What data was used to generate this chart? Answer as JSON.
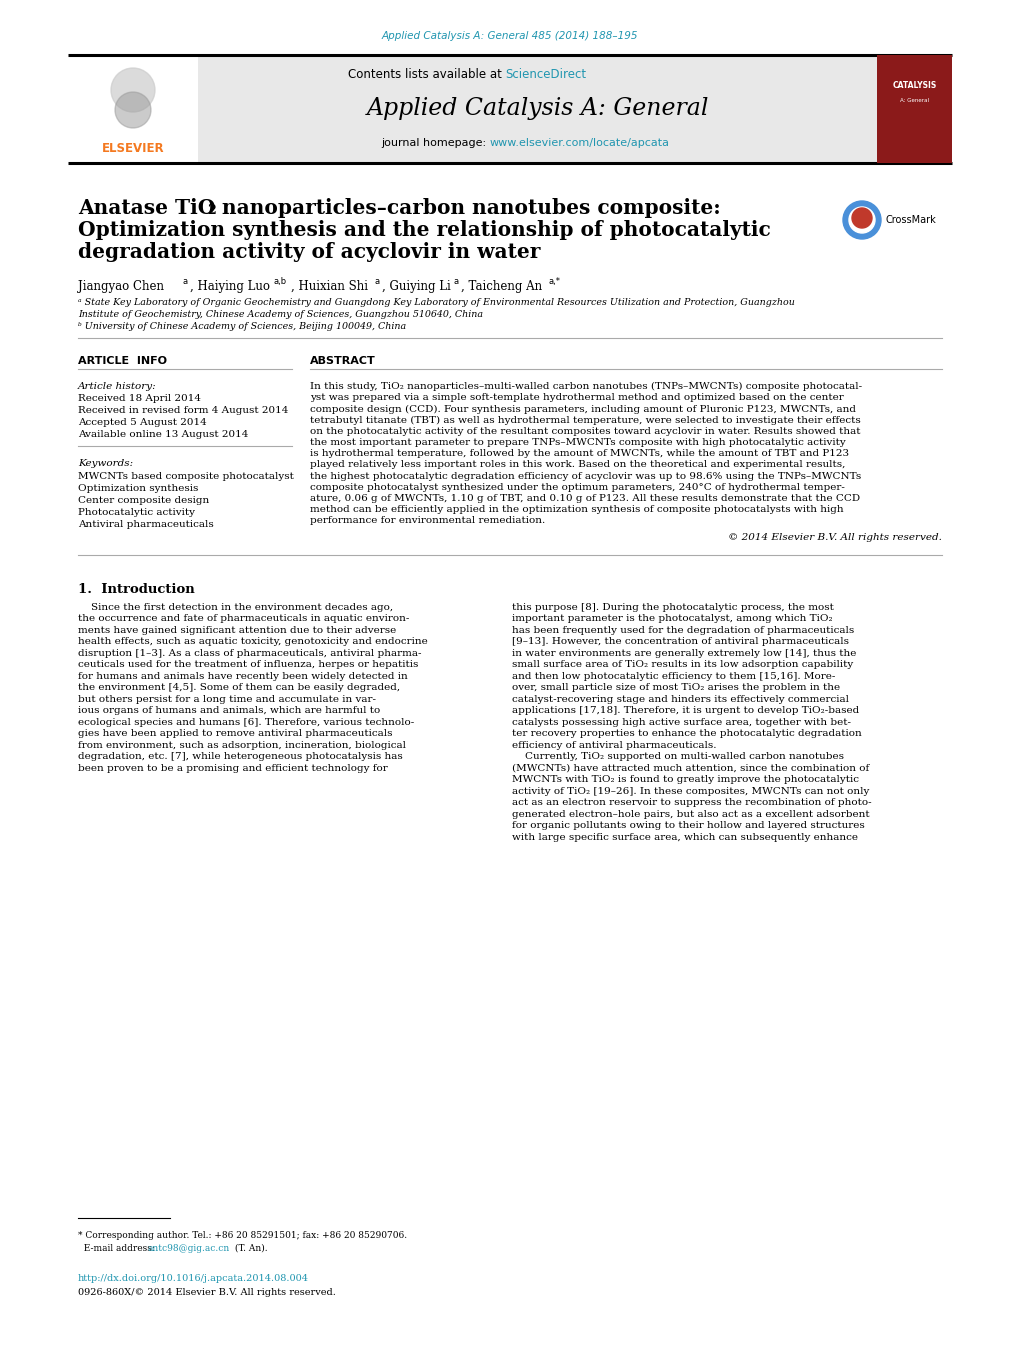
{
  "journal_ref": "Applied Catalysis A: General 485 (2014) 188–195",
  "journal_name": "Applied Catalysis A: General",
  "journal_homepage_prefix": "journal homepage: ",
  "journal_homepage_link": "www.elsevier.com/locate/apcata",
  "contents_text": "Contents lists available at ",
  "contents_link": "ScienceDirect",
  "elsevier_text": "ELSEVIER",
  "title_part1": "Anatase TiO",
  "title_sub": "2",
  "title_part2": " nanoparticles–carbon nanotubes composite:",
  "title_line2": "Optimization synthesis and the relationship of photocatalytic",
  "title_line3": "degradation activity of acyclovir in water",
  "affil_a": "ᵃ State Key Laboratory of Organic Geochemistry and Guangdong Key Laboratory of Environmental Resources Utilization and Protection, Guangzhou",
  "affil_a2": "Institute of Geochemistry, Chinese Academy of Sciences, Guangzhou 510640, China",
  "affil_b": "ᵇ University of Chinese Academy of Sciences, Beijing 100049, China",
  "art_info_header": "ARTICLE  INFO",
  "abstract_header": "ABSTRACT",
  "hist_header": "Article history:",
  "received1": "Received 18 April 2014",
  "received2": "Received in revised form 4 August 2014",
  "accepted": "Accepted 5 August 2014",
  "available": "Available online 13 August 2014",
  "kw_header": "Keywords:",
  "kw1": "MWCNTs based composite photocatalyst",
  "kw2": "Optimization synthesis",
  "kw3": "Center composite design",
  "kw4": "Photocatalytic activity",
  "kw5": "Antiviral pharmaceuticals",
  "abstract_lines": [
    "In this study, TiO₂ nanoparticles–multi-walled carbon nanotubes (TNPs–MWCNTs) composite photocatal-",
    "yst was prepared via a simple soft-template hydrothermal method and optimized based on the center",
    "composite design (CCD). Four synthesis parameters, including amount of Pluronic P123, MWCNTs, and",
    "tetrabutyl titanate (TBT) as well as hydrothermal temperature, were selected to investigate their effects",
    "on the photocatalytic activity of the resultant composites toward acyclovir in water. Results showed that",
    "the most important parameter to prepare TNPs–MWCNTs composite with high photocatalytic activity",
    "is hydrothermal temperature, followed by the amount of MWCNTs, while the amount of TBT and P123",
    "played relatively less important roles in this work. Based on the theoretical and experimental results,",
    "the highest photocatalytic degradation efficiency of acyclovir was up to 98.6% using the TNPs–MWCNTs",
    "composite photocatalyst synthesized under the optimum parameters, 240°C of hydrothermal temper-",
    "ature, 0.06 g of MWCNTs, 1.10 g of TBT, and 0.10 g of P123. All these results demonstrate that the CCD",
    "method can be efficiently applied in the optimization synthesis of composite photocatalysts with high",
    "performance for environmental remediation."
  ],
  "copyright": "© 2014 Elsevier B.V. All rights reserved.",
  "intro_header": "1.  Introduction",
  "intro_col1_lines": [
    "    Since the first detection in the environment decades ago,",
    "the occurrence and fate of pharmaceuticals in aquatic environ-",
    "ments have gained significant attention due to their adverse",
    "health effects, such as aquatic toxicity, genotoxicity and endocrine",
    "disruption [1–3]. As a class of pharmaceuticals, antiviral pharma-",
    "ceuticals used for the treatment of influenza, herpes or hepatitis",
    "for humans and animals have recently been widely detected in",
    "the environment [4,5]. Some of them can be easily degraded,",
    "but others persist for a long time and accumulate in var-",
    "ious organs of humans and animals, which are harmful to",
    "ecological species and humans [6]. Therefore, various technolo-",
    "gies have been applied to remove antiviral pharmaceuticals",
    "from environment, such as adsorption, incineration, biological",
    "degradation, etc. [7], while heterogeneous photocatalysis has",
    "been proven to be a promising and efficient technology for"
  ],
  "intro_col2_lines": [
    "this purpose [8]. During the photocatalytic process, the most",
    "important parameter is the photocatalyst, among which TiO₂",
    "has been frequently used for the degradation of pharmaceuticals",
    "[9–13]. However, the concentration of antiviral pharmaceuticals",
    "in water environments are generally extremely low [14], thus the",
    "small surface area of TiO₂ results in its low adsorption capability",
    "and then low photocatalytic efficiency to them [15,16]. More-",
    "over, small particle size of most TiO₂ arises the problem in the",
    "catalyst-recovering stage and hinders its effectively commercial",
    "applications [17,18]. Therefore, it is urgent to develop TiO₂-based",
    "catalysts possessing high active surface area, together with bet-",
    "ter recovery properties to enhance the photocatalytic degradation",
    "efficiency of antiviral pharmaceuticals.",
    "    Currently, TiO₂ supported on multi-walled carbon nanotubes",
    "(MWCNTs) have attracted much attention, since the combination of",
    "MWCNTs with TiO₂ is found to greatly improve the photocatalytic",
    "activity of TiO₂ [19–26]. In these composites, MWCNTs can not only",
    "act as an electron reservoir to suppress the recombination of photo-",
    "generated electron–hole pairs, but also act as a excellent adsorbent",
    "for organic pollutants owing to their hollow and layered structures",
    "with large specific surface area, which can subsequently enhance"
  ],
  "footnote1": "* Corresponding author. Tel.: +86 20 85291501; fax: +86 20 85290706.",
  "footnote2_pre": "  E-mail address: ",
  "footnote2_email": "antc98@gig.ac.cn",
  "footnote2_post": " (T. An).",
  "doi_link": "http://dx.doi.org/10.1016/j.apcata.2014.08.004",
  "issn_text": "0926-860X/© 2014 Elsevier B.V. All rights reserved.",
  "bg": "#ffffff",
  "header_bg": "#e8e8e8",
  "cyan": "#2196b0",
  "orange": "#f47920",
  "gray_line": "#aaaaaa",
  "red_cover": "#8b1a1a",
  "title_fs": 14.5,
  "body_fs": 7.5,
  "small_fs": 6.8
}
